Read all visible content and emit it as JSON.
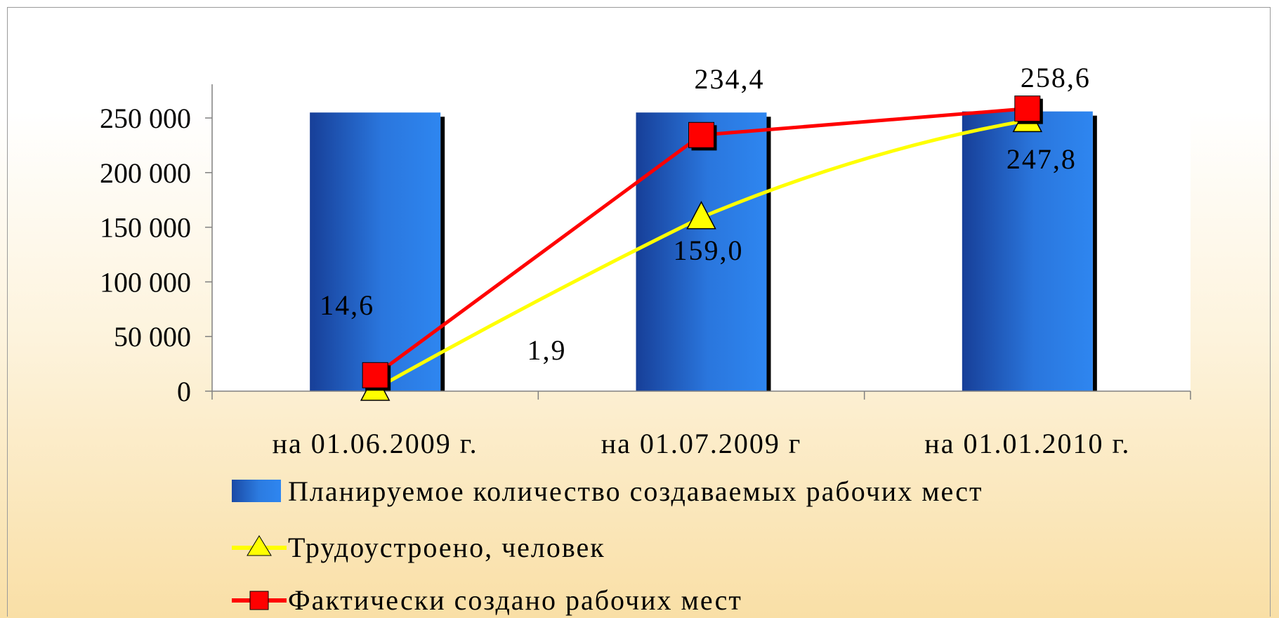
{
  "colors": {
    "bar": "#2878e0",
    "bar_dark": "#173f98",
    "bar_shadow": "#000000",
    "employed_line": "#ffff00",
    "created_line": "#ff0000",
    "axis": "#808080",
    "plot_bg": "#ffffff"
  },
  "chart_data": {
    "type": "bar",
    "categories": [
      "на 01.06.2009 г.",
      "на 01.07.2009 г",
      "на 01.01.2010 г."
    ],
    "ylim": [
      0,
      250000
    ],
    "y_ticks": [
      0,
      50000,
      100000,
      150000,
      200000,
      250000
    ],
    "y_tick_labels": [
      "0",
      "50 000",
      "100 000",
      "150 000",
      "200 000",
      "250 000"
    ],
    "grid": false,
    "legend_position": "bottom",
    "series": [
      {
        "name": "Планируемое количество создаваемых рабочих мест",
        "type": "bar",
        "color": "#2878e0",
        "values": [
          255000,
          255000,
          256000
        ]
      },
      {
        "name": "Трудоустроено, человек",
        "type": "line",
        "marker": "triangle",
        "color": "#ffff00",
        "values": [
          1900,
          159000,
          247800
        ],
        "labels": [
          "1,9",
          "159,0",
          "247,8"
        ]
      },
      {
        "name": "Фактически создано рабочих мест",
        "type": "line",
        "marker": "square",
        "color": "#ff0000",
        "values": [
          14600,
          234400,
          258600
        ],
        "labels": [
          "14,6",
          "234,4",
          "258,6"
        ]
      }
    ]
  }
}
